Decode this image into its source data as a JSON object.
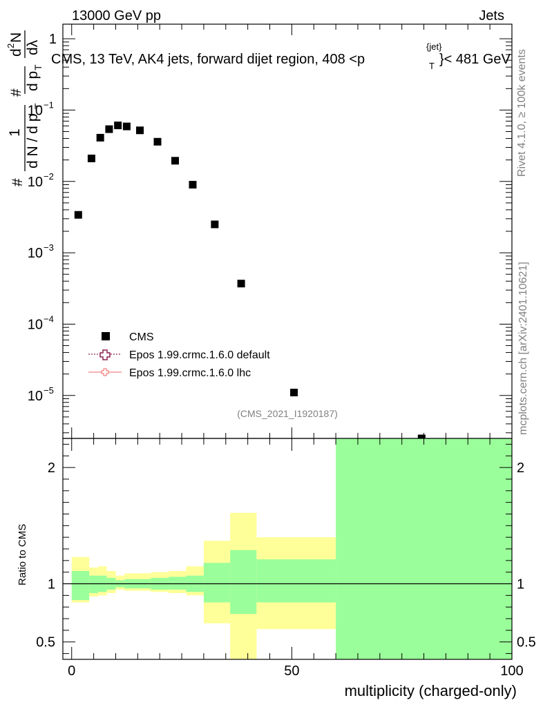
{
  "header": {
    "left": "13000 GeV pp",
    "right": "Jets",
    "title": "CMS, 13 TeV, AK4 jets, forward dijet region, 408 <p",
    "title_sup": "{jet}",
    "title_sub": "T",
    "title_tail": "}< 481 GeV"
  },
  "side": {
    "rivet": "Rivet 4.1.0, ≥ 100k events",
    "mcplots": "mcplots.cern.ch [arXiv:2401.10621]"
  },
  "ylabel_main": {
    "hash": "#",
    "one": "1",
    "dN": "d N / d p",
    "dN_sub": "T",
    "hash2": "#",
    "dp": "d p",
    "dp_sub": "T",
    "d2N": "d",
    "d2N_sup": "2",
    "N": "N",
    "dl": "dλ"
  },
  "watermark": "(CMS_2021_I1920187)",
  "legend": [
    {
      "label": "CMS",
      "style": "square",
      "color": "#000000"
    },
    {
      "label": "Epos 1.99.crmc.1.6.0 default",
      "style": "open-cross-dotted",
      "color": "#8b2252"
    },
    {
      "label": "Epos 1.99.crmc.1.6.0 lhc",
      "style": "cross-solid",
      "color": "#f08080"
    }
  ],
  "chart_data": [
    {
      "type": "scatter",
      "panel": "main",
      "title": "CMS, 13 TeV, AK4 jets, forward dijet region, 408 <p_T^{jet}< 481 GeV",
      "xlabel": "multiplicity (charged-only)",
      "ylabel": "1/N dN/dλ",
      "yscale": "log",
      "xlim": [
        -2,
        100
      ],
      "ylim": [
        2.5e-06,
        1.6
      ],
      "y_ticks": [
        {
          "value": 1,
          "label": "1"
        },
        {
          "value": 0.1,
          "label": "10",
          "sup": "−1"
        },
        {
          "value": 0.01,
          "label": "10",
          "sup": "−2"
        },
        {
          "value": 0.001,
          "label": "10",
          "sup": "−3"
        },
        {
          "value": 0.0001,
          "label": "10",
          "sup": "−4"
        },
        {
          "value": 1e-05,
          "label": "10",
          "sup": "−5"
        }
      ],
      "series": [
        {
          "name": "CMS",
          "x": [
            1.5,
            4.5,
            6.5,
            8.5,
            10.5,
            12.5,
            15.5,
            19.5,
            23.5,
            27.5,
            32.5,
            38.5,
            50.5,
            79.5
          ],
          "y": [
            0.0034,
            0.021,
            0.041,
            0.054,
            0.061,
            0.059,
            0.052,
            0.036,
            0.0195,
            0.009,
            0.0025,
            0.00037,
            1.1e-05,
            2.5e-06
          ]
        }
      ]
    },
    {
      "type": "area",
      "panel": "ratio",
      "xlabel": "multiplicity (charged-only)",
      "ylabel": "Ratio to CMS",
      "xlim": [
        -2,
        100
      ],
      "ylim": [
        0.35,
        2.25
      ],
      "x_ticks": [
        0,
        50,
        100
      ],
      "y_ticks": [
        0.5,
        1,
        2
      ],
      "reference": 1,
      "bins": [
        {
          "x": [
            0,
            4
          ],
          "inner": [
            0.86,
            1.11
          ],
          "outer": [
            0.84,
            1.23
          ]
        },
        {
          "x": [
            4,
            6
          ],
          "inner": [
            0.92,
            1.07
          ],
          "outer": [
            0.89,
            1.14
          ]
        },
        {
          "x": [
            6,
            8
          ],
          "inner": [
            0.93,
            1.07
          ],
          "outer": [
            0.9,
            1.15
          ]
        },
        {
          "x": [
            8,
            10
          ],
          "inner": [
            0.95,
            1.05
          ],
          "outer": [
            0.92,
            1.11
          ]
        },
        {
          "x": [
            10,
            12
          ],
          "inner": [
            0.97,
            1.03
          ],
          "outer": [
            0.95,
            1.07
          ]
        },
        {
          "x": [
            12,
            14
          ],
          "inner": [
            0.96,
            1.04
          ],
          "outer": [
            0.94,
            1.09
          ]
        },
        {
          "x": [
            14,
            18
          ],
          "inner": [
            0.96,
            1.04
          ],
          "outer": [
            0.94,
            1.09
          ]
        },
        {
          "x": [
            18,
            22
          ],
          "inner": [
            0.95,
            1.05
          ],
          "outer": [
            0.93,
            1.1
          ]
        },
        {
          "x": [
            22,
            26
          ],
          "inner": [
            0.95,
            1.06
          ],
          "outer": [
            0.92,
            1.11
          ]
        },
        {
          "x": [
            26,
            30
          ],
          "inner": [
            0.93,
            1.07
          ],
          "outer": [
            0.9,
            1.15
          ]
        },
        {
          "x": [
            30,
            36
          ],
          "inner": [
            0.84,
            1.18
          ],
          "outer": [
            0.66,
            1.37
          ]
        },
        {
          "x": [
            36,
            42
          ],
          "inner": [
            0.74,
            1.29
          ],
          "outer": [
            0.33,
            1.61
          ]
        },
        {
          "x": [
            42,
            60
          ],
          "inner": [
            0.84,
            1.21
          ],
          "outer": [
            0.61,
            1.4
          ]
        },
        {
          "x": [
            60,
            100
          ],
          "inner": [
            0.33,
            2.3
          ],
          "outer": [
            0.33,
            2.3
          ]
        }
      ]
    }
  ],
  "colors": {
    "inner_band": "#9aff9a",
    "outer_band": "#ffff99",
    "axis": "#000000",
    "text_grey": "#808080"
  }
}
